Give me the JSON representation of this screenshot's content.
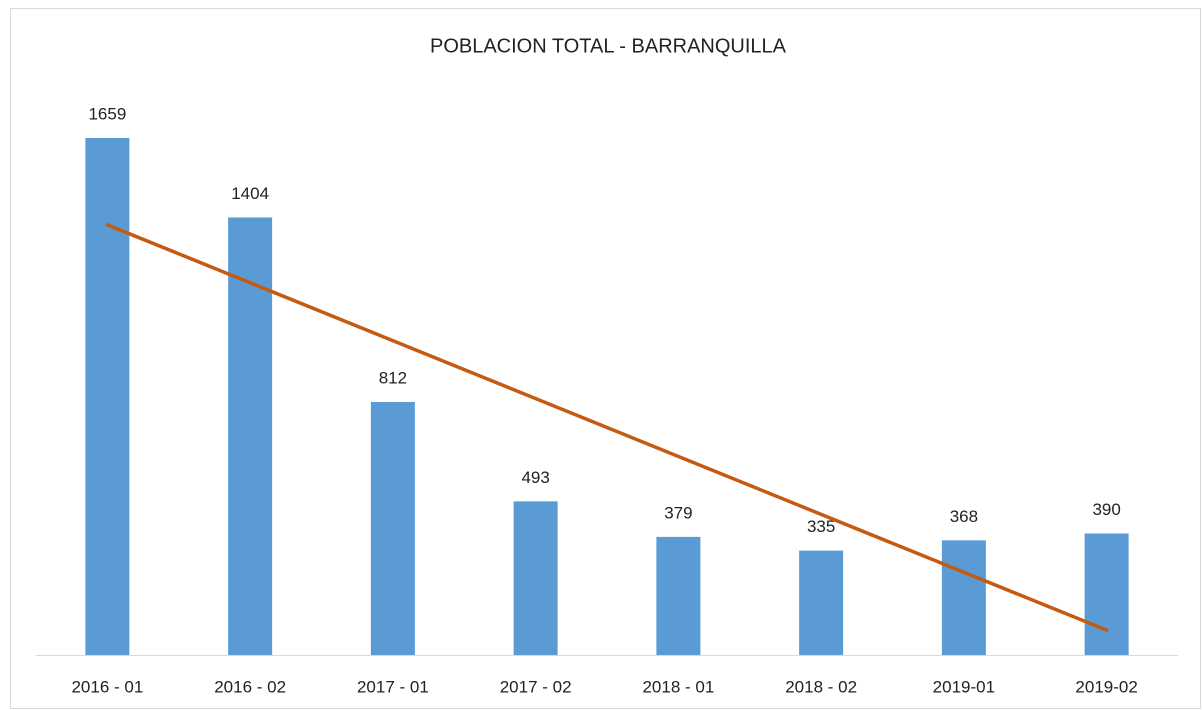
{
  "chart_data": {
    "type": "bar",
    "title": "POBLACION TOTAL - BARRANQUILLA",
    "categories": [
      "2016 - 01",
      "2016 - 02",
      "2017 - 01",
      "2017 - 02",
      "2018 - 01",
      "2018 - 02",
      "2019-01",
      "2019-02"
    ],
    "values": [
      1659,
      1404,
      812,
      493,
      379,
      335,
      368,
      390
    ],
    "color": "#5b9bd5",
    "trendline": {
      "type": "linear",
      "color": "#c55a11"
    },
    "data_labels": true
  }
}
